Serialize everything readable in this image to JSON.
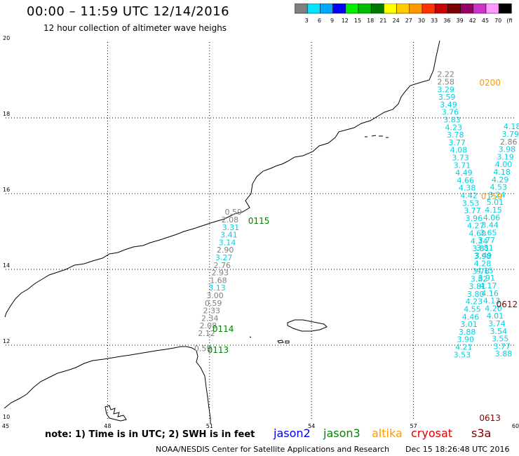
{
  "header": {
    "title": "00:00 – 11:59 UTC 12/14/2016",
    "subtitle": "12 hour collection of altimeter wave heighs"
  },
  "colorbar": {
    "labels": [
      "3",
      "6",
      "9",
      "12",
      "15",
      "18",
      "21",
      "24",
      "27",
      "30",
      "33",
      "36",
      "39",
      "42",
      "45",
      "70",
      "(ft)"
    ],
    "colors": [
      "#7f7f7f",
      "#00e5ff",
      "#00a8ff",
      "#0000ff",
      "#00ee00",
      "#00bb00",
      "#007700",
      "#ffff00",
      "#ffcc00",
      "#ff9900",
      "#ff3300",
      "#cc0000",
      "#770000",
      "#990066",
      "#cc33cc",
      "#ff99ff",
      "#000000"
    ]
  },
  "map": {
    "lat_ticks": [
      "20",
      "18",
      "16",
      "14",
      "12",
      "10"
    ],
    "lon_ticks": [
      "45",
      "48",
      "51",
      "54",
      "57",
      "60"
    ],
    "lon_range": [
      45,
      60
    ],
    "lat_range": [
      10,
      20
    ],
    "gridlines": true
  },
  "colors": {
    "gray": "#808080",
    "cyan": "#00d0e0",
    "jason3": "#007f00",
    "altika": "#ff9900",
    "cryosat": "#8b0000"
  },
  "tracks": [
    {
      "color": "gray",
      "lon": 51.7,
      "lat": 15.44,
      "value": "0.59"
    },
    {
      "color": "gray",
      "lon": 51.6,
      "lat": 15.24,
      "value": "2.08"
    },
    {
      "color": "cyan",
      "lon": 51.62,
      "lat": 15.04,
      "value": "3.31"
    },
    {
      "color": "cyan",
      "lon": 51.57,
      "lat": 14.84,
      "value": "3.41"
    },
    {
      "color": "cyan",
      "lon": 51.52,
      "lat": 14.64,
      "value": "3.14"
    },
    {
      "color": "gray",
      "lon": 51.46,
      "lat": 14.44,
      "value": "2.90"
    },
    {
      "color": "cyan",
      "lon": 51.42,
      "lat": 14.24,
      "value": "3.27"
    },
    {
      "color": "gray",
      "lon": 51.37,
      "lat": 14.04,
      "value": "2.76"
    },
    {
      "color": "gray",
      "lon": 51.31,
      "lat": 13.84,
      "value": "2.93"
    },
    {
      "color": "gray",
      "lon": 51.26,
      "lat": 13.64,
      "value": "1.68"
    },
    {
      "color": "cyan",
      "lon": 51.22,
      "lat": 13.44,
      "value": "3.13"
    },
    {
      "color": "gray",
      "lon": 51.16,
      "lat": 13.24,
      "value": "3.00"
    },
    {
      "color": "gray",
      "lon": 51.11,
      "lat": 13.04,
      "value": "0.59"
    },
    {
      "color": "gray",
      "lon": 51.06,
      "lat": 12.84,
      "value": "2.33"
    },
    {
      "color": "gray",
      "lon": 51.01,
      "lat": 12.64,
      "value": "2.34"
    },
    {
      "color": "gray",
      "lon": 50.96,
      "lat": 12.44,
      "value": "2.08"
    },
    {
      "color": "gray",
      "lon": 50.91,
      "lat": 12.24,
      "value": "2.12"
    },
    {
      "color": "gray",
      "lon": 50.8,
      "lat": 11.84,
      "value": "0.59"
    },
    {
      "color": "gray",
      "lon": 57.95,
      "lat": 19.08,
      "value": "2.22"
    },
    {
      "color": "gray",
      "lon": 57.95,
      "lat": 18.88,
      "value": "2.58"
    },
    {
      "color": "cyan",
      "lon": 57.95,
      "lat": 18.68,
      "value": "3.29"
    },
    {
      "color": "cyan",
      "lon": 57.98,
      "lat": 18.48,
      "value": "3.59"
    },
    {
      "color": "cyan",
      "lon": 58.03,
      "lat": 18.28,
      "value": "3.49"
    },
    {
      "color": "cyan",
      "lon": 58.08,
      "lat": 18.08,
      "value": "3.76"
    },
    {
      "color": "cyan",
      "lon": 58.13,
      "lat": 17.88,
      "value": "3.83"
    },
    {
      "color": "cyan",
      "lon": 58.18,
      "lat": 17.68,
      "value": "4.23"
    },
    {
      "color": "cyan",
      "lon": 58.23,
      "lat": 17.48,
      "value": "3.78"
    },
    {
      "color": "cyan",
      "lon": 58.28,
      "lat": 17.28,
      "value": "3.77"
    },
    {
      "color": "cyan",
      "lon": 58.33,
      "lat": 17.08,
      "value": "4.08"
    },
    {
      "color": "cyan",
      "lon": 58.38,
      "lat": 16.88,
      "value": "3.73"
    },
    {
      "color": "cyan",
      "lon": 58.43,
      "lat": 16.68,
      "value": "3.71"
    },
    {
      "color": "cyan",
      "lon": 58.48,
      "lat": 16.48,
      "value": "4.49"
    },
    {
      "color": "cyan",
      "lon": 58.53,
      "lat": 16.28,
      "value": "4.66"
    },
    {
      "color": "cyan",
      "lon": 58.58,
      "lat": 16.08,
      "value": "4.38"
    },
    {
      "color": "cyan",
      "lon": 58.63,
      "lat": 15.88,
      "value": "4.42"
    },
    {
      "color": "cyan",
      "lon": 58.68,
      "lat": 15.68,
      "value": "3.53"
    },
    {
      "color": "cyan",
      "lon": 58.73,
      "lat": 15.48,
      "value": "3.77"
    },
    {
      "color": "cyan",
      "lon": 58.78,
      "lat": 15.28,
      "value": "3.96"
    },
    {
      "color": "cyan",
      "lon": 58.83,
      "lat": 15.08,
      "value": "4.27"
    },
    {
      "color": "cyan",
      "lon": 58.88,
      "lat": 14.88,
      "value": "4.60"
    },
    {
      "color": "cyan",
      "lon": 58.93,
      "lat": 14.68,
      "value": "4.34"
    },
    {
      "color": "cyan",
      "lon": 58.98,
      "lat": 14.48,
      "value": "3.81"
    },
    {
      "color": "cyan",
      "lon": 59.03,
      "lat": 14.28,
      "value": "3.98"
    },
    {
      "color": "cyan",
      "lon": 59.03,
      "lat": 14.08,
      "value": "4.28"
    },
    {
      "color": "cyan",
      "lon": 58.98,
      "lat": 13.88,
      "value": "3.76"
    },
    {
      "color": "cyan",
      "lon": 58.93,
      "lat": 13.68,
      "value": "3.82"
    },
    {
      "color": "cyan",
      "lon": 58.88,
      "lat": 13.48,
      "value": "3.81"
    },
    {
      "color": "cyan",
      "lon": 58.83,
      "lat": 13.28,
      "value": "3.80"
    },
    {
      "color": "cyan",
      "lon": 58.78,
      "lat": 13.08,
      "value": "4.23"
    },
    {
      "color": "cyan",
      "lon": 58.73,
      "lat": 12.88,
      "value": "4.55"
    },
    {
      "color": "cyan",
      "lon": 58.68,
      "lat": 12.68,
      "value": "4.46"
    },
    {
      "color": "cyan",
      "lon": 58.63,
      "lat": 12.48,
      "value": "3.01"
    },
    {
      "color": "cyan",
      "lon": 58.58,
      "lat": 12.28,
      "value": "3.88"
    },
    {
      "color": "cyan",
      "lon": 58.53,
      "lat": 12.08,
      "value": "3.90"
    },
    {
      "color": "cyan",
      "lon": 58.48,
      "lat": 11.88,
      "value": "4.21"
    },
    {
      "color": "cyan",
      "lon": 58.43,
      "lat": 11.68,
      "value": "3.53"
    },
    {
      "color": "cyan",
      "lon": 59.9,
      "lat": 17.7,
      "value": "4.18"
    },
    {
      "color": "cyan",
      "lon": 59.85,
      "lat": 17.5,
      "value": "3.79"
    },
    {
      "color": "gray",
      "lon": 59.8,
      "lat": 17.3,
      "value": "2.86"
    },
    {
      "color": "cyan",
      "lon": 59.75,
      "lat": 17.1,
      "value": "3.98"
    },
    {
      "color": "cyan",
      "lon": 59.7,
      "lat": 16.9,
      "value": "3.19"
    },
    {
      "color": "cyan",
      "lon": 59.65,
      "lat": 16.7,
      "value": "4.00"
    },
    {
      "color": "cyan",
      "lon": 59.6,
      "lat": 16.5,
      "value": "4.18"
    },
    {
      "color": "cyan",
      "lon": 59.55,
      "lat": 16.3,
      "value": "4.29"
    },
    {
      "color": "cyan",
      "lon": 59.5,
      "lat": 16.1,
      "value": "4.53"
    },
    {
      "color": "cyan",
      "lon": 59.45,
      "lat": 15.9,
      "value": "3.24"
    },
    {
      "color": "cyan",
      "lon": 59.4,
      "lat": 15.7,
      "value": "5.01"
    },
    {
      "color": "cyan",
      "lon": 59.35,
      "lat": 15.5,
      "value": "4.15"
    },
    {
      "color": "cyan",
      "lon": 59.3,
      "lat": 15.3,
      "value": "4.06"
    },
    {
      "color": "cyan",
      "lon": 59.25,
      "lat": 15.1,
      "value": "3.44"
    },
    {
      "color": "cyan",
      "lon": 59.2,
      "lat": 14.9,
      "value": "3.65"
    },
    {
      "color": "cyan",
      "lon": 59.15,
      "lat": 14.7,
      "value": "3.77"
    },
    {
      "color": "cyan",
      "lon": 59.1,
      "lat": 14.5,
      "value": "3.81"
    },
    {
      "color": "cyan",
      "lon": 59.05,
      "lat": 14.3,
      "value": "3.49"
    },
    {
      "color": "cyan",
      "lon": 59.1,
      "lat": 13.9,
      "value": "4.15"
    },
    {
      "color": "cyan",
      "lon": 59.15,
      "lat": 13.7,
      "value": "3.91"
    },
    {
      "color": "cyan",
      "lon": 59.2,
      "lat": 13.5,
      "value": "4.17"
    },
    {
      "color": "cyan",
      "lon": 59.25,
      "lat": 13.3,
      "value": "4.16"
    },
    {
      "color": "cyan",
      "lon": 59.3,
      "lat": 13.1,
      "value": "4.13"
    },
    {
      "color": "cyan",
      "lon": 59.35,
      "lat": 12.9,
      "value": "4.20"
    },
    {
      "color": "cyan",
      "lon": 59.4,
      "lat": 12.7,
      "value": "4.01"
    },
    {
      "color": "cyan",
      "lon": 59.45,
      "lat": 12.5,
      "value": "3.74"
    },
    {
      "color": "cyan",
      "lon": 59.5,
      "lat": 12.3,
      "value": "3.54"
    },
    {
      "color": "cyan",
      "lon": 59.55,
      "lat": 12.1,
      "value": "3.55"
    },
    {
      "color": "cyan",
      "lon": 59.6,
      "lat": 11.9,
      "value": "3.77"
    },
    {
      "color": "cyan",
      "lon": 59.65,
      "lat": 11.7,
      "value": "3.88"
    }
  ],
  "pass_labels": [
    {
      "color": "jason3",
      "lon": 52.45,
      "lat": 15.2,
      "text": "0115"
    },
    {
      "color": "jason3",
      "lon": 51.4,
      "lat": 12.35,
      "text": "0114"
    },
    {
      "color": "jason3",
      "lon": 51.25,
      "lat": 11.8,
      "text": "0113"
    },
    {
      "color": "altika",
      "lon": 59.25,
      "lat": 18.85,
      "text": "0200"
    },
    {
      "color": "altika",
      "lon": 59.3,
      "lat": 15.85,
      "text": "0159"
    },
    {
      "color": "cryosat",
      "lon": 59.75,
      "lat": 13.0,
      "text": "0612"
    },
    {
      "color": "cryosat",
      "lon": 59.25,
      "lat": 10.0,
      "text": "0613"
    }
  ],
  "note": "note: 1) Time is in UTC; 2) SWH is in feet",
  "legend": [
    {
      "text": "jason2",
      "color": "#0000ee"
    },
    {
      "text": "jason3",
      "color": "#008800"
    },
    {
      "text": "altika",
      "color": "#ff9900"
    },
    {
      "text": "cryosat",
      "color": "#dd0000"
    },
    {
      "text": "s3a",
      "color": "#770000"
    }
  ],
  "credit": "NOAA/NESDIS Center for Satellite Applications and Research",
  "timestamp": "Dec 15 18:26:48 UTC 2016"
}
